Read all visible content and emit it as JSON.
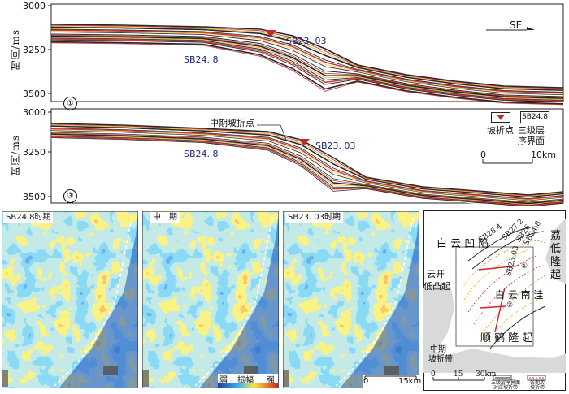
{
  "top_panel": {
    "y_axis_label": "时间/ms",
    "y_ticks": [
      "3000",
      "3250",
      "3500"
    ],
    "labels": {
      "sb23": "SB23. 03",
      "sb24": "SB24. 8",
      "direction": "SE",
      "number": "①"
    },
    "legend": {
      "sb_box": "SB24.8",
      "slope_break": "坡折点",
      "sequence_line1": "三级层",
      "sequence_line2": "序界面"
    },
    "scalebar": {
      "start": "0",
      "end": "10km"
    }
  },
  "middle_panel": {
    "y_axis_label": "时间/ms",
    "y_ticks": [
      "3000",
      "3250",
      "3500"
    ],
    "labels": {
      "midbreak": "中期坡折点",
      "sb23": "SB23. 03",
      "sb24": "SB24. 8",
      "number": "③"
    }
  },
  "maps": [
    {
      "title": "SB24.8时期"
    },
    {
      "title": "中　期"
    },
    {
      "title": "SB23. 03时期"
    }
  ],
  "amplitude_legend": {
    "weak": "弱",
    "middle": "振幅",
    "strong": "强"
  },
  "map_scalebar": {
    "start": "0",
    "end": "15km"
  },
  "location_map": {
    "labels": {
      "baiyun_depression": "白 云 凹 陷",
      "lidi_uplift_1": "荔",
      "lidi_uplift_2": "低",
      "lidi_uplift_3": "隆",
      "lidi_uplift_4": "起",
      "yunkai_1": "云开",
      "yunkai_2": "低凸起",
      "baiyun_south": "白 云 南 洼",
      "shunhe": "顺 鹤 隆 起",
      "midperiod_1": "中期",
      "midperiod_2": "坡折带",
      "sb284": "SB28.4",
      "sb272": "SB27.2",
      "sb26": "SB26",
      "sb248": "SB24.8",
      "sb2303": "SB23.03",
      "line1": "①",
      "line3": "③"
    },
    "scalebar": {
      "start": "0",
      "mid": "15",
      "end": "30km"
    },
    "legend": {
      "item1_line1": "三级层序界面",
      "item1_line2": "对应坡折带",
      "item2_line1": "各期次",
      "item2_line2": "坡折带"
    }
  }
}
